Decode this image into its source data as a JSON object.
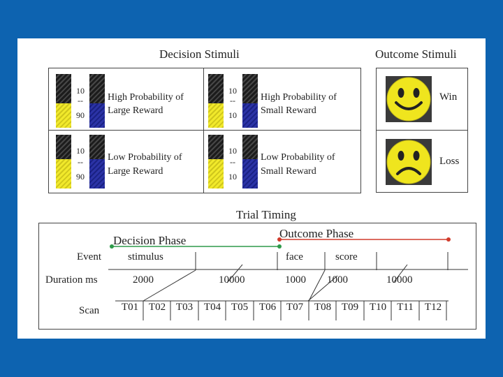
{
  "decision_title": "Decision Stimuli",
  "outcome_title": "Outcome Stimuli",
  "stimuli": [
    {
      "top": "10",
      "mid": "--",
      "bottom": "90",
      "label1": "High Probability of",
      "label2": "Large Reward"
    },
    {
      "top": "10",
      "mid": "--",
      "bottom": "10",
      "label1": "High Probability of",
      "label2": "Small Reward"
    },
    {
      "top": "10",
      "mid": "--",
      "bottom": "90",
      "label1": "Low Probability of",
      "label2": "Large Reward"
    },
    {
      "top": "10",
      "mid": "--",
      "bottom": "10",
      "label1": "Low Probability of",
      "label2": "Small Reward"
    }
  ],
  "bar_levels": [
    {
      "yellow": 0.45,
      "blue": 0.45
    },
    {
      "yellow": 0.45,
      "blue": 0.45
    },
    {
      "yellow": 0.55,
      "blue": 0.55
    },
    {
      "yellow": 0.55,
      "blue": 0.55
    }
  ],
  "outcomes": [
    {
      "label": "Win",
      "face": "happy-face-icon"
    },
    {
      "label": "Loss",
      "face": "sad-face-icon"
    }
  ],
  "timing": {
    "title": "Trial Timing",
    "decision_phase": "Decision Phase",
    "outcome_phase": "Outcome Phase",
    "event_label": "Event",
    "duration_label": "Duration ms",
    "scan_label": "Scan",
    "events": {
      "stimulus": "stimulus",
      "face": "face",
      "score": "score"
    },
    "durations": [
      "2000",
      "10000",
      "1000",
      "1000",
      "10000"
    ],
    "scans": [
      "T01",
      "T02",
      "T03",
      "T04",
      "T05",
      "T06",
      "T07",
      "T08",
      "T09",
      "T10",
      "T11",
      "T12"
    ]
  },
  "colors": {
    "background": "#0d63b0",
    "yellow": "#f1e92b",
    "blue": "#2b33a6",
    "decision_line": "#2e9a4a",
    "outcome_line": "#d13b2b"
  }
}
